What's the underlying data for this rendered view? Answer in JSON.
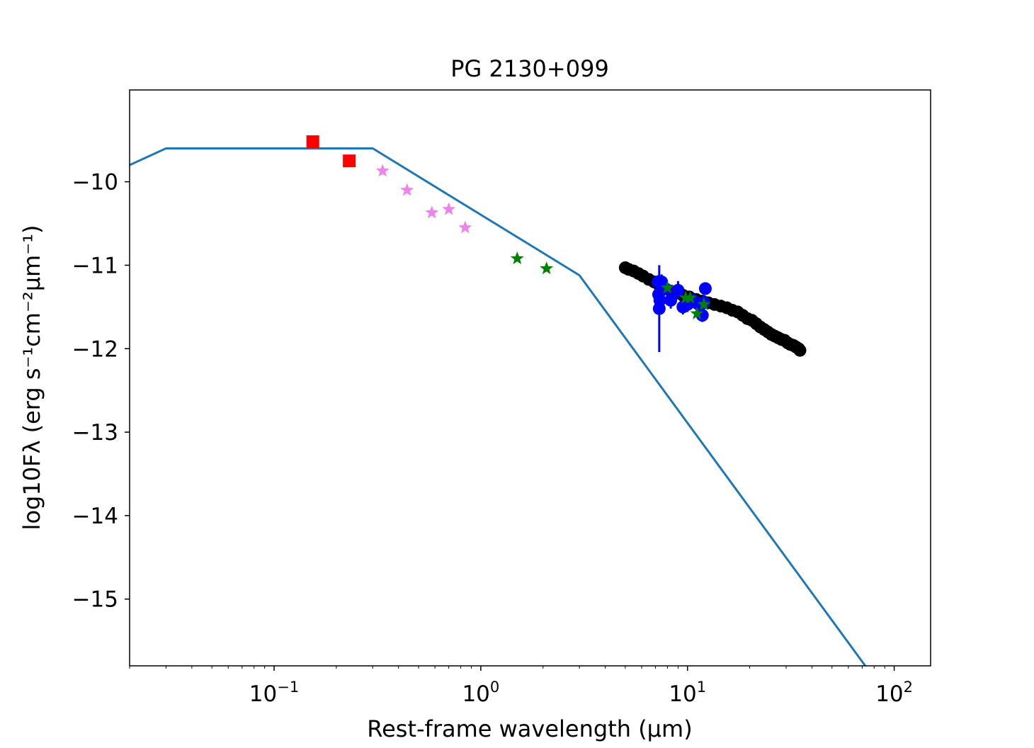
{
  "chart_data": {
    "type": "scatter",
    "title": "PG 2130+099",
    "xlabel": "Rest-frame wavelength (μm)",
    "ylabel": "log10Fλ (erg s⁻¹cm⁻²μm⁻¹)",
    "xscale": "log",
    "xlim": [
      0.02,
      150
    ],
    "ylim": [
      -15.8,
      -8.9
    ],
    "x_ticks": [
      {
        "value": 0.1,
        "mantissa": "10",
        "exp": "−1"
      },
      {
        "value": 1,
        "mantissa": "10",
        "exp": "0"
      },
      {
        "value": 10,
        "mantissa": "10",
        "exp": "1"
      },
      {
        "value": 100,
        "mantissa": "10",
        "exp": "2"
      }
    ],
    "y_ticks": [
      {
        "value": -10,
        "label": "−10"
      },
      {
        "value": -11,
        "label": "−11"
      },
      {
        "value": -12,
        "label": "−12"
      },
      {
        "value": -13,
        "label": "−13"
      },
      {
        "value": -14,
        "label": "−14"
      },
      {
        "value": -15,
        "label": "−15"
      }
    ],
    "colors": {
      "model": "#1f77b4",
      "uv": "#ff0000",
      "optical": "#ee82ee",
      "nir": "#008000",
      "irs": "#000000",
      "mir": "#0000ff",
      "mir_phot": "#008000"
    },
    "series": [
      {
        "name": "model",
        "kind": "line",
        "color": "#1f77b4",
        "x": [
          0.02,
          0.03,
          0.3,
          3.0,
          75
        ],
        "y": [
          -9.8,
          -9.6,
          -9.6,
          -11.12,
          -15.85
        ]
      },
      {
        "name": "uv",
        "kind": "square",
        "color": "#ff0000",
        "x": [
          0.154,
          0.231
        ],
        "y": [
          -9.52,
          -9.75
        ]
      },
      {
        "name": "optical",
        "kind": "star",
        "color": "#ee82ee",
        "x": [
          0.335,
          0.44,
          0.58,
          0.7,
          0.84
        ],
        "y": [
          -9.87,
          -10.1,
          -10.37,
          -10.33,
          -10.55
        ]
      },
      {
        "name": "nir",
        "kind": "star",
        "color": "#008000",
        "x": [
          1.5,
          2.08
        ],
        "y": [
          -10.92,
          -11.04
        ]
      },
      {
        "name": "irs",
        "kind": "dot",
        "color": "#000000",
        "x": [
          5.0,
          5.2,
          5.5,
          5.8,
          6.1,
          6.5,
          6.9,
          7.3,
          7.8,
          8.3,
          8.9,
          9.5,
          10.2,
          11.0,
          11.8,
          12.6,
          13.5,
          14.5,
          15.5,
          16.5,
          17.5,
          18.5,
          19.5,
          20.5,
          21.5,
          22.5,
          23.5,
          24.5,
          25.5,
          26.5,
          27.5,
          28.5,
          29.5,
          30.5,
          31.5,
          32.5,
          33.5,
          34.5,
          35.0
        ],
        "y": [
          -11.03,
          -11.05,
          -11.07,
          -11.1,
          -11.13,
          -11.17,
          -11.2,
          -11.24,
          -11.28,
          -11.31,
          -11.33,
          -11.36,
          -11.38,
          -11.41,
          -11.43,
          -11.45,
          -11.47,
          -11.49,
          -11.51,
          -11.54,
          -11.56,
          -11.6,
          -11.64,
          -11.66,
          -11.7,
          -11.74,
          -11.77,
          -11.8,
          -11.83,
          -11.85,
          -11.87,
          -11.89,
          -11.9,
          -11.93,
          -11.95,
          -11.96,
          -11.98,
          -12.0,
          -12.02
        ]
      },
      {
        "name": "mir",
        "kind": "dot-err",
        "color": "#0000ff",
        "x": [
          7.2,
          7.25,
          7.3,
          7.35,
          7.5,
          7.8,
          8.3,
          9.0,
          9.5,
          10.0,
          10.5,
          11.2,
          11.8,
          12.0,
          12.2
        ],
        "y": [
          -11.2,
          -11.35,
          -11.52,
          -11.42,
          -11.2,
          -11.28,
          -11.42,
          -11.3,
          -11.5,
          -11.47,
          -11.42,
          -11.46,
          -11.6,
          -11.45,
          -11.28
        ],
        "yerr": [
          0.08,
          0.09,
          0.52,
          0.1,
          0.09,
          0.08,
          0.1,
          0.11,
          0.09,
          0.09,
          0.08,
          0.09,
          0.08,
          0.09,
          0.07
        ]
      },
      {
        "name": "mir_phot",
        "kind": "star",
        "color": "#008000",
        "x": [
          8.0,
          9.8,
          10.3,
          11.1,
          12.0
        ],
        "y": [
          -11.27,
          -11.39,
          -11.39,
          -11.58,
          -11.47
        ]
      }
    ]
  }
}
